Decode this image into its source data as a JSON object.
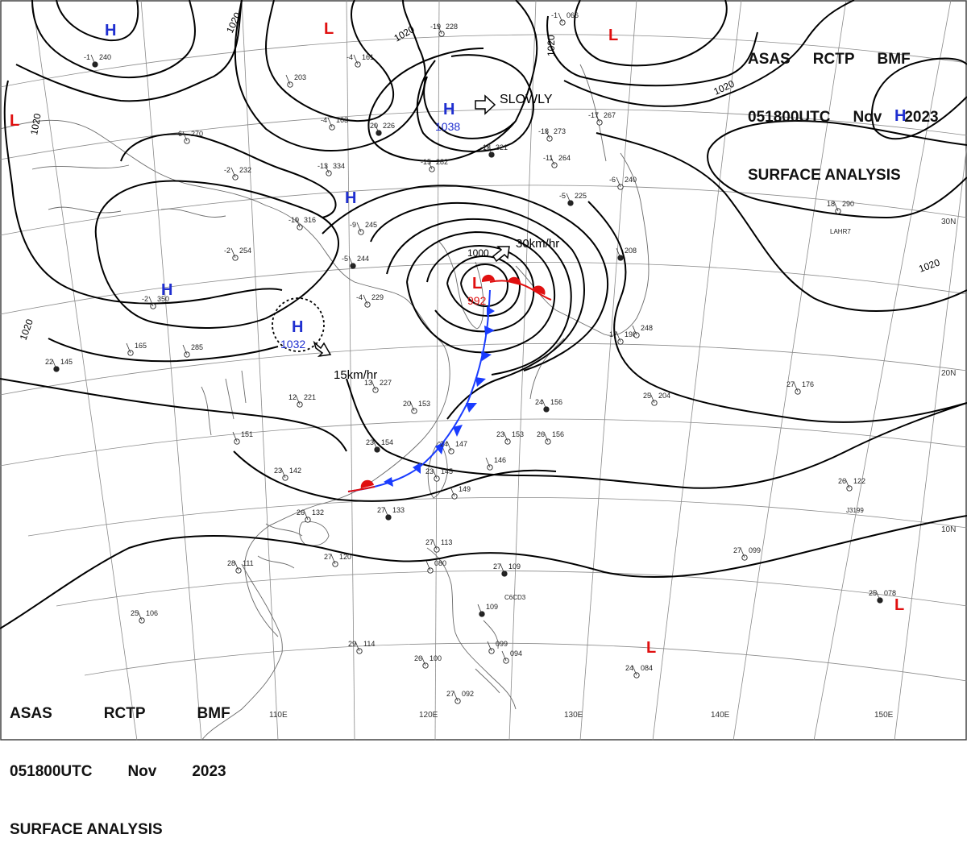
{
  "header": {
    "line1": [
      "ASAS",
      "RCTP",
      "BMF"
    ],
    "line2": [
      "051800UTC",
      "Nov",
      "2023"
    ],
    "line3": "SURFACE ANALYSIS"
  },
  "colors": {
    "high": "#1f2fd0",
    "low": "#e01010",
    "cold_front": "#1a3cff",
    "warm_front": "#e01010",
    "isobar": "#000000",
    "grid": "#777777",
    "coast": "#666666"
  },
  "lat_labels": [
    "30N",
    "20N",
    "10N"
  ],
  "lon_labels": [
    "110E",
    "120E",
    "130E",
    "140E",
    "150E"
  ],
  "isobar_labels": [
    "1020",
    "1020",
    "1020",
    "1020",
    "1020",
    "1020",
    "1000"
  ],
  "pressure_centers": [
    {
      "type": "H",
      "value": "1038"
    },
    {
      "type": "H",
      "value": "1032"
    },
    {
      "type": "L",
      "value": "992"
    },
    {
      "type": "H",
      "value": ""
    },
    {
      "type": "H",
      "value": ""
    },
    {
      "type": "H",
      "value": ""
    },
    {
      "type": "H",
      "value": ""
    },
    {
      "type": "L",
      "value": ""
    },
    {
      "type": "L",
      "value": ""
    },
    {
      "type": "L",
      "value": ""
    },
    {
      "type": "L",
      "value": ""
    },
    {
      "type": "L",
      "value": ""
    }
  ],
  "movements": [
    "SLOWLY",
    "30km/hr",
    "15km/hr"
  ],
  "stations": [
    {
      "t": "-1",
      "p": "240"
    },
    {
      "t": "-4",
      "p": "161"
    },
    {
      "t": "",
      "p": "203"
    },
    {
      "t": "-4",
      "p": "163"
    },
    {
      "t": "-19",
      "p": "228"
    },
    {
      "t": "-20",
      "p": "226"
    },
    {
      "t": "-6",
      "p": "270"
    },
    {
      "t": "-2",
      "p": "232"
    },
    {
      "t": "-13",
      "p": "334"
    },
    {
      "t": "-10",
      "p": "316"
    },
    {
      "t": "-18",
      "p": "321"
    },
    {
      "t": "-15",
      "p": "282"
    },
    {
      "t": "-18",
      "p": "273"
    },
    {
      "t": "-17",
      "p": "267"
    },
    {
      "t": "-11",
      "p": "264"
    },
    {
      "t": "-5",
      "p": "225"
    },
    {
      "t": "-6",
      "p": "240"
    },
    {
      "t": "-1",
      "p": "066"
    },
    {
      "t": "-9",
      "p": "245"
    },
    {
      "t": "-2",
      "p": "254"
    },
    {
      "t": "-5",
      "p": "244"
    },
    {
      "t": "-2",
      "p": "350"
    },
    {
      "t": "-4",
      "p": "229"
    },
    {
      "t": "",
      "p": "165"
    },
    {
      "t": "",
      "p": "285"
    },
    {
      "t": "22",
      "p": "145"
    },
    {
      "t": "13",
      "p": "227"
    },
    {
      "t": "12",
      "p": "221"
    },
    {
      "t": "20",
      "p": "153"
    },
    {
      "t": "",
      "p": "151"
    },
    {
      "t": "23",
      "p": "154"
    },
    {
      "t": "24",
      "p": "147"
    },
    {
      "t": "",
      "p": "146"
    },
    {
      "t": "23",
      "p": "153"
    },
    {
      "t": "26",
      "p": "156"
    },
    {
      "t": "24",
      "p": "156"
    },
    {
      "t": "23",
      "p": "145"
    },
    {
      "t": "",
      "p": "149"
    },
    {
      "t": "23",
      "p": "142"
    },
    {
      "t": "26",
      "p": "132"
    },
    {
      "t": "27",
      "p": "133"
    },
    {
      "t": "28",
      "p": "111"
    },
    {
      "t": "27",
      "p": "120"
    },
    {
      "t": "27",
      "p": "113"
    },
    {
      "t": "",
      "p": "080"
    },
    {
      "t": "27",
      "p": "109"
    },
    {
      "t": "27",
      "p": "099"
    },
    {
      "t": "25",
      "p": "106"
    },
    {
      "t": "29",
      "p": "114"
    },
    {
      "t": "26",
      "p": "100"
    },
    {
      "t": "",
      "p": "109"
    },
    {
      "t": "",
      "p": "099"
    },
    {
      "t": "",
      "p": "094"
    },
    {
      "t": "27",
      "p": "092"
    },
    {
      "t": "24",
      "p": "084"
    },
    {
      "t": "25",
      "p": "078"
    },
    {
      "t": "26",
      "p": "122"
    },
    {
      "t": "27",
      "p": "176"
    },
    {
      "t": "25",
      "p": "204"
    },
    {
      "t": "18",
      "p": "290"
    },
    {
      "t": "",
      "p": "208"
    },
    {
      "t": "17",
      "p": "198"
    },
    {
      "t": "",
      "p": "248"
    }
  ],
  "ship_ids": [
    "LAHR7",
    "J3199",
    "C6CD3"
  ]
}
